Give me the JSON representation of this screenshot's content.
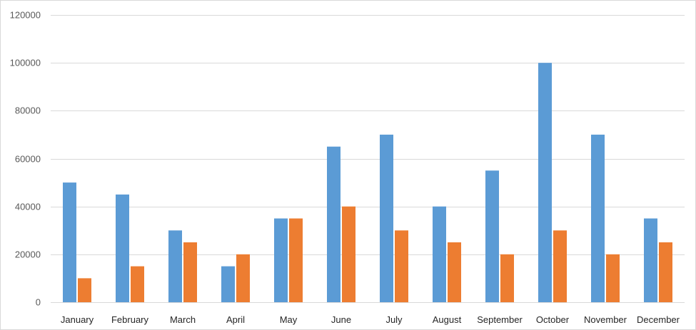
{
  "chart_data": {
    "type": "bar",
    "title": "",
    "xlabel": "",
    "ylabel": "",
    "ylim": [
      0,
      120000
    ],
    "yticks": [
      0,
      20000,
      40000,
      60000,
      80000,
      100000,
      120000
    ],
    "grid": true,
    "legend": "none",
    "categories": [
      "January",
      "February",
      "March",
      "April",
      "May",
      "June",
      "July",
      "August",
      "September",
      "October",
      "November",
      "December"
    ],
    "series": [
      {
        "color": "#5b9bd5",
        "values": [
          50000,
          45000,
          30000,
          15000,
          35000,
          65000,
          70000,
          40000,
          55000,
          100000,
          70000,
          35000
        ]
      },
      {
        "color": "#ed7d31",
        "values": [
          10000,
          15000,
          25000,
          20000,
          35000,
          40000,
          30000,
          25000,
          20000,
          30000,
          20000,
          25000
        ]
      }
    ]
  }
}
